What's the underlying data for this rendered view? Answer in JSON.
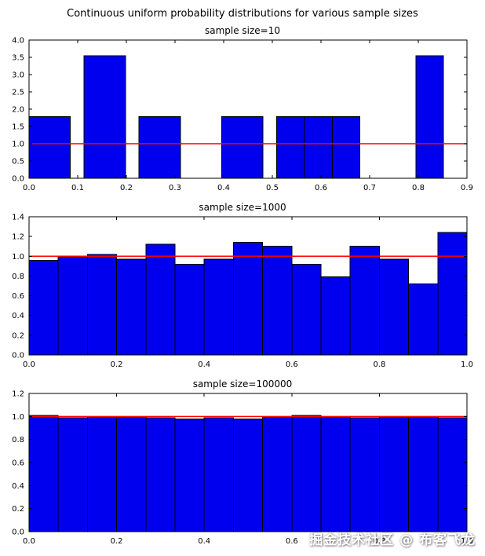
{
  "figure_title": "Continuous uniform probability distributions for various sample sizes",
  "watermark": "掘金技术社区 @ 布客飞龙",
  "colors": {
    "bar_fill": "#0000ee",
    "bar_edge": "#000000",
    "ref_line": "#ff0000",
    "axis": "#000000",
    "background": "#ffffff",
    "watermark_text": "#ffffff"
  },
  "chart_data": [
    {
      "type": "bar",
      "title": "sample size=10",
      "xlim": [
        0.0,
        0.9
      ],
      "ylim": [
        0.0,
        4.0
      ],
      "xticks": [
        0.0,
        0.1,
        0.2,
        0.3,
        0.4,
        0.5,
        0.6,
        0.7,
        0.8,
        0.9
      ],
      "xtick_labels": [
        "0.0",
        "0.1",
        "0.2",
        "0.3",
        "0.4",
        "0.5",
        "0.6",
        "0.7",
        "0.8",
        "0.9"
      ],
      "yticks": [
        0.0,
        0.5,
        1.0,
        1.5,
        2.0,
        2.5,
        3.0,
        3.5,
        4.0
      ],
      "ytick_labels": [
        "0.0",
        "0.5",
        "1.0",
        "1.5",
        "2.0",
        "2.5",
        "3.0",
        "3.5",
        "4.0"
      ],
      "ref_line_y": 1.0,
      "bars": [
        {
          "x0": 0.0,
          "x1": 0.085,
          "h": 1.78
        },
        {
          "x0": 0.113,
          "x1": 0.198,
          "h": 3.55
        },
        {
          "x0": 0.226,
          "x1": 0.311,
          "h": 1.78
        },
        {
          "x0": 0.396,
          "x1": 0.481,
          "h": 1.78
        },
        {
          "x0": 0.509,
          "x1": 0.566,
          "h": 1.78
        },
        {
          "x0": 0.566,
          "x1": 0.623,
          "h": 1.78
        },
        {
          "x0": 0.623,
          "x1": 0.68,
          "h": 1.78
        },
        {
          "x0": 0.795,
          "x1": 0.852,
          "h": 3.55
        }
      ]
    },
    {
      "type": "bar",
      "title": "sample size=1000",
      "xlim": [
        0.0,
        1.0
      ],
      "ylim": [
        0.0,
        1.4
      ],
      "xticks": [
        0.0,
        0.2,
        0.4,
        0.6,
        0.8,
        1.0
      ],
      "xtick_labels": [
        "0.0",
        "0.2",
        "0.4",
        "0.6",
        "0.8",
        "1.0"
      ],
      "yticks": [
        0.0,
        0.2,
        0.4,
        0.6,
        0.8,
        1.0,
        1.2,
        1.4
      ],
      "ytick_labels": [
        "0.0",
        "0.2",
        "0.4",
        "0.6",
        "0.8",
        "1.0",
        "1.2",
        "1.4"
      ],
      "ref_line_y": 1.0,
      "bins": {
        "start": 0.0,
        "end": 1.0
      },
      "values": [
        0.96,
        0.99,
        1.02,
        0.97,
        1.12,
        0.92,
        0.97,
        1.14,
        1.1,
        0.92,
        0.79,
        1.1,
        0.97,
        0.72,
        1.24
      ]
    },
    {
      "type": "bar",
      "title": "sample size=100000",
      "xlim": [
        0.0,
        1.0
      ],
      "ylim": [
        0.0,
        1.2
      ],
      "xticks": [
        0.0,
        0.2,
        0.4,
        0.6,
        0.8,
        1.0
      ],
      "xtick_labels": [
        "0.0",
        "0.2",
        "0.4",
        "0.6",
        "0.8",
        "1.0"
      ],
      "yticks": [
        0.0,
        0.2,
        0.4,
        0.6,
        0.8,
        1.0,
        1.2
      ],
      "ytick_labels": [
        "0.0",
        "0.2",
        "0.4",
        "0.6",
        "0.8",
        "1.0",
        "1.2"
      ],
      "ref_line_y": 1.0,
      "bins": {
        "start": 0.0,
        "end": 1.0
      },
      "values": [
        1.01,
        0.99,
        1.0,
        1.0,
        0.99,
        0.98,
        0.99,
        0.98,
        1.0,
        1.01,
        1.0,
        0.99,
        1.0,
        1.0,
        0.99
      ]
    }
  ]
}
